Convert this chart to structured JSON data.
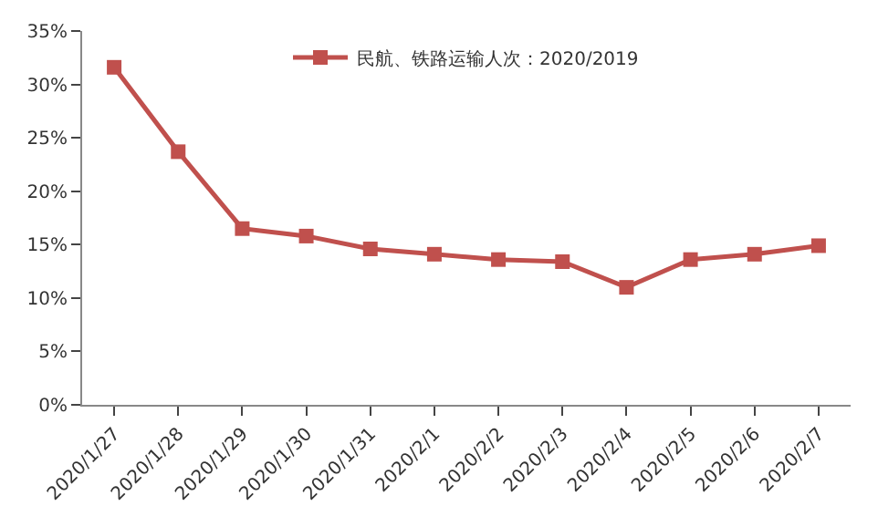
{
  "chart_data": {
    "type": "line",
    "categories": [
      "2020/1/27",
      "2020/1/28",
      "2020/1/29",
      "2020/1/30",
      "2020/1/31",
      "2020/2/1",
      "2020/2/2",
      "2020/2/3",
      "2020/2/4",
      "2020/2/5",
      "2020/2/6",
      "2020/2/7"
    ],
    "series": [
      {
        "name": "民航、铁路运输人次：2020/2019",
        "color": "#c0504d",
        "values": [
          31.6,
          23.7,
          16.5,
          15.8,
          14.6,
          14.1,
          13.6,
          13.4,
          11.0,
          13.6,
          14.1,
          14.9
        ]
      }
    ],
    "ylim": [
      0,
      35
    ],
    "yticks": [
      {
        "value": 0,
        "label": "0%"
      },
      {
        "value": 5,
        "label": "5%"
      },
      {
        "value": 10,
        "label": "10%"
      },
      {
        "value": 15,
        "label": "15%"
      },
      {
        "value": 20,
        "label": "20%"
      },
      {
        "value": 25,
        "label": "25%"
      },
      {
        "value": 30,
        "label": "30%"
      },
      {
        "value": 35,
        "label": "35%"
      }
    ],
    "legend": "top",
    "marker": "square",
    "line_style": "solid"
  }
}
